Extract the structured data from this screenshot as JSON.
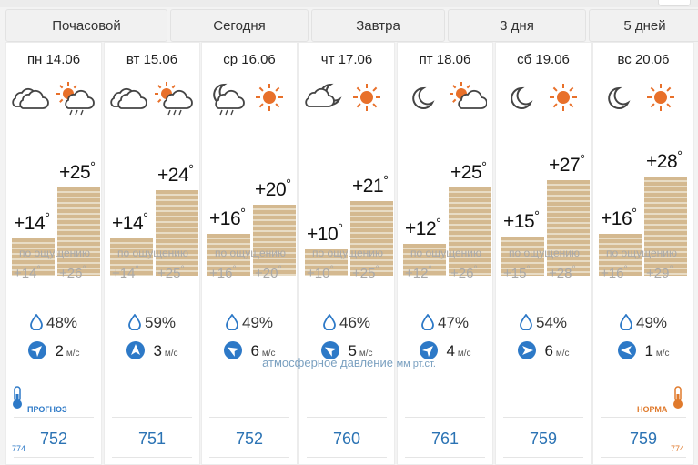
{
  "tabs": [
    "Почасовой",
    "Сегодня",
    "Завтра",
    "3 дня",
    "5 дней"
  ],
  "feel_label": "по ощущению",
  "wind_unit": "м/с",
  "pressure_caption": "атмосферное давление",
  "pressure_unit": "мм рт.ст.",
  "forecast_label": "прогноз",
  "norm_label": "норма",
  "norm_value_left": "774",
  "norm_value_right": "774",
  "colors": {
    "accent": "#2d79c7",
    "sun": "#e8702a",
    "bar": "#d4b990",
    "norm": "#e07a2c"
  },
  "days": [
    {
      "name": "пн 14.06",
      "icons": [
        "cloudy-icon",
        "sun-cloud-rain-icon"
      ],
      "low": "+14",
      "high": "+25",
      "feel_low": "+14",
      "feel_high": "+26",
      "low_val": 14,
      "high_val": 25,
      "humidity": "48%",
      "wind_speed": "2",
      "wind_deg": 45,
      "pressure": "752"
    },
    {
      "name": "вт 15.06",
      "icons": [
        "cloudy-icon",
        "sun-cloud-rain-icon"
      ],
      "low": "+14",
      "high": "+24",
      "feel_low": "+14",
      "feel_high": "+25",
      "low_val": 14,
      "high_val": 24,
      "humidity": "59%",
      "wind_speed": "3",
      "wind_deg": 0,
      "pressure": "751"
    },
    {
      "name": "ср 16.06",
      "icons": [
        "moon-cloud-rain-icon",
        "sun-icon"
      ],
      "low": "+16",
      "high": "+20",
      "feel_low": "+16",
      "feel_high": "+20",
      "low_val": 16,
      "high_val": 20,
      "humidity": "49%",
      "wind_speed": "6",
      "wind_deg": 300,
      "pressure": "752"
    },
    {
      "name": "чт 17.06",
      "icons": [
        "moon-cloud-icon",
        "sun-icon"
      ],
      "low": "+10",
      "high": "+21",
      "feel_low": "+10",
      "feel_high": "+25",
      "low_val": 10,
      "high_val": 21,
      "humidity": "46%",
      "wind_speed": "5",
      "wind_deg": 300,
      "pressure": "760"
    },
    {
      "name": "пт 18.06",
      "icons": [
        "moon-icon",
        "sun-cloud-icon"
      ],
      "low": "+12",
      "high": "+25",
      "feel_low": "+12",
      "feel_high": "+26",
      "low_val": 12,
      "high_val": 25,
      "humidity": "47%",
      "wind_speed": "4",
      "wind_deg": 45,
      "pressure": "761"
    },
    {
      "name": "сб 19.06",
      "icons": [
        "moon-icon",
        "sun-icon"
      ],
      "low": "+15",
      "high": "+27",
      "feel_low": "+15",
      "feel_high": "+28",
      "low_val": 15,
      "high_val": 27,
      "humidity": "54%",
      "wind_speed": "6",
      "wind_deg": 90,
      "pressure": "759"
    },
    {
      "name": "вс 20.06",
      "icons": [
        "moon-icon",
        "sun-icon"
      ],
      "low": "+16",
      "high": "+28",
      "feel_low": "+16",
      "feel_high": "+29",
      "low_val": 16,
      "high_val": 28,
      "humidity": "49%",
      "wind_speed": "1",
      "wind_deg": 270,
      "pressure": "759"
    }
  ]
}
